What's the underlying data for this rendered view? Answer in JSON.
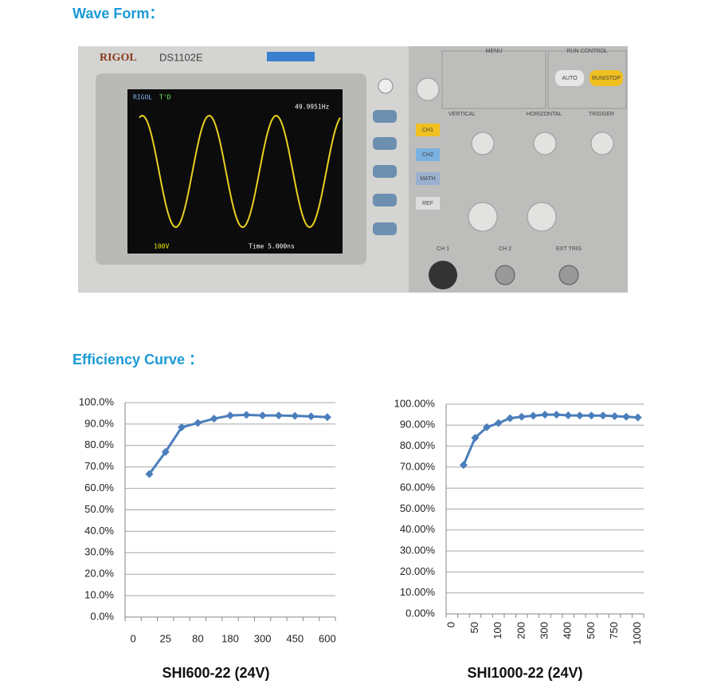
{
  "headings": {
    "wave_form": "Wave Form：",
    "efficiency": "Efficiency Curve ："
  },
  "oscilloscope": {
    "brand": "RIGOL",
    "model": "DS1102E",
    "screen_brand": "RIGOL",
    "trig_state": "T'D",
    "frequency": "49.9951Hz",
    "volts": "100V",
    "timebase": "Time 5.000ns",
    "ch1": "CH1",
    "ch2": "CH2",
    "math": "MATH",
    "ref": "REF",
    "menu": "MENU",
    "run_control": "RUN CONTROL",
    "auto": "AUTO",
    "run_stop": "RUN/STOP",
    "vertical": "VERTICAL",
    "horizontal": "HORIZONTAL",
    "trigger": "TRIGGER",
    "in_ch1": "CH 1",
    "in_ch2": "CH 2",
    "ext_trig": "EXT TRIG"
  },
  "chart_data": [
    {
      "type": "line",
      "caption": "SHI600-22 (24V)",
      "categories": [
        "0",
        null,
        "25",
        null,
        "80",
        null,
        "180",
        null,
        "300",
        null,
        "450",
        null,
        "600"
      ],
      "series": [
        {
          "color": "#4a7ebb",
          "values": [
            null,
            66.7,
            77,
            88.5,
            90.5,
            92.5,
            94,
            94.3,
            94,
            94,
            93.8,
            93.6,
            93.2
          ]
        }
      ],
      "ylim": [
        0,
        100
      ],
      "yticks": [
        {
          "value": 0,
          "label": "0.0%"
        },
        {
          "value": 10,
          "label": "10.0%"
        },
        {
          "value": 20,
          "label": "20.0%"
        },
        {
          "value": 30,
          "label": "30.0%"
        },
        {
          "value": 40,
          "label": "40.0%"
        },
        {
          "value": 50,
          "label": "50.0%"
        },
        {
          "value": 60,
          "label": "60.0%"
        },
        {
          "value": 70,
          "label": "70.0%"
        },
        {
          "value": 80,
          "label": "80.0%"
        },
        {
          "value": 90,
          "label": "90.0%"
        },
        {
          "value": 100,
          "label": "100.0%"
        }
      ],
      "grid": true,
      "xtick_rotation": 0
    },
    {
      "type": "line",
      "caption": "SHI1000-22 (24V)",
      "categories": [
        "0",
        null,
        "50",
        null,
        "100",
        null,
        "200",
        null,
        "300",
        null,
        "400",
        null,
        "500",
        null,
        "750",
        null,
        "1000"
      ],
      "series": [
        {
          "color": "#4a7ebb",
          "values": [
            null,
            71,
            84,
            89,
            91,
            93.3,
            94,
            94.5,
            95,
            95,
            94.7,
            94.6,
            94.6,
            94.6,
            94.3,
            94,
            93.7
          ]
        }
      ],
      "ylim": [
        0,
        100
      ],
      "yticks": [
        {
          "value": 0,
          "label": "0.00%"
        },
        {
          "value": 10,
          "label": "10.00%"
        },
        {
          "value": 20,
          "label": "20.00%"
        },
        {
          "value": 30,
          "label": "30.00%"
        },
        {
          "value": 40,
          "label": "40.00%"
        },
        {
          "value": 50,
          "label": "50.00%"
        },
        {
          "value": 60,
          "label": "60.00%"
        },
        {
          "value": 70,
          "label": "70.00%"
        },
        {
          "value": 80,
          "label": "80.00%"
        },
        {
          "value": 90,
          "label": "90.00%"
        },
        {
          "value": 100,
          "label": "100.00%"
        }
      ],
      "grid": true,
      "xtick_rotation": -90
    }
  ]
}
